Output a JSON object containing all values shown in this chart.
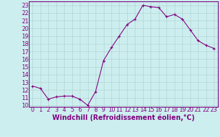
{
  "x": [
    0,
    1,
    2,
    3,
    4,
    5,
    6,
    7,
    8,
    9,
    10,
    11,
    12,
    13,
    14,
    15,
    16,
    17,
    18,
    19,
    20,
    21,
    22,
    23
  ],
  "y": [
    12.5,
    12.2,
    10.8,
    11.1,
    11.2,
    11.2,
    10.8,
    10.0,
    11.8,
    15.8,
    17.5,
    19.0,
    20.5,
    21.2,
    23.0,
    22.8,
    22.7,
    21.5,
    21.8,
    21.2,
    19.8,
    18.4,
    17.8,
    17.4
  ],
  "line_color": "#800080",
  "marker": "+",
  "bg_color": "#cceeee",
  "grid_color": "#aacccc",
  "xlabel": "Windchill (Refroidissement éolien,°C)",
  "xlabel_color": "#800080",
  "ylim": [
    9.8,
    23.5
  ],
  "xlim": [
    -0.5,
    23.5
  ],
  "yticks": [
    10,
    11,
    12,
    13,
    14,
    15,
    16,
    17,
    18,
    19,
    20,
    21,
    22,
    23
  ],
  "xticks": [
    0,
    1,
    2,
    3,
    4,
    5,
    6,
    7,
    8,
    9,
    10,
    11,
    12,
    13,
    14,
    15,
    16,
    17,
    18,
    19,
    20,
    21,
    22,
    23
  ],
  "tick_color": "#800080",
  "spine_color": "#800080",
  "tick_font_size": 6,
  "xlabel_font_size": 7
}
